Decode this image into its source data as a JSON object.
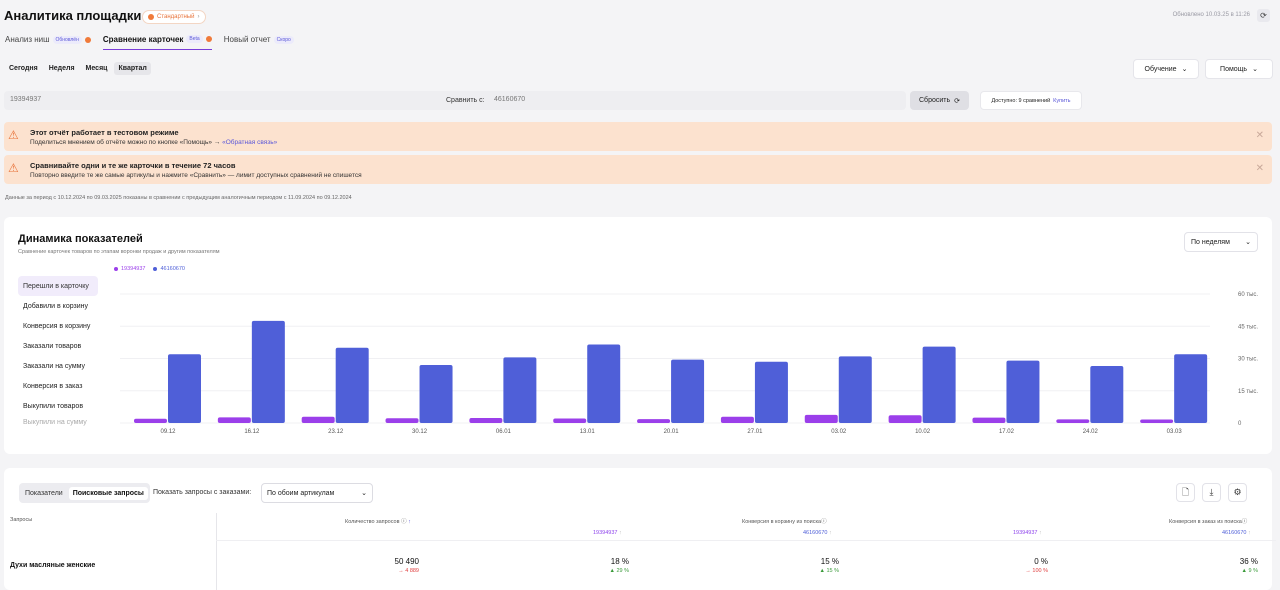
{
  "header": {
    "title": "Аналитика площадки",
    "plan_label": "Стандартный",
    "updated": "Обновлено 10.03.25 в 11:26"
  },
  "tabs": [
    {
      "label": "Анализ ниш",
      "tag": "Обновлён"
    },
    {
      "label": "Сравнение карточек",
      "tag": "Beta"
    },
    {
      "label": "Новый отчет",
      "tag": "Скоро"
    }
  ],
  "periods": [
    "Сегодня",
    "Неделя",
    "Месяц",
    "Квартал"
  ],
  "top_buttons": {
    "learning": "Обучение",
    "help": "Помощь"
  },
  "compare": {
    "article1": "19394937",
    "label": "Сравнить с:",
    "article2": "46160670",
    "reset": "Сбросить",
    "available": "Доступно: 9 сравнений",
    "buy": "Купить"
  },
  "alerts": [
    {
      "title": "Этот отчёт работает в тестовом режиме",
      "text": "Поделиться мнением об отчёте можно по кнопке «Помощь» →",
      "link": "«Обратная связь»"
    },
    {
      "title": "Сравнивайте одни и те же карточки в течение 72 часов",
      "text": "Повторно введите те же самые артикулы и нажмите «Сравнить» — лимит доступных сравнений не спишется"
    }
  ],
  "period_info": "Данные за период с 10.12.2024 по 09.03.2025 показаны в сравнении с предыдущим аналогичным периодом с 11.09.2024 по 09.12.2024",
  "chart_section": {
    "title": "Динамика показателей",
    "subtitle": "Сравнение карточек товаров по этапам воронки продаж и другим показателям",
    "period_select": "По неделям",
    "metrics": [
      "Перешли в карточку",
      "Добавили в корзину",
      "Конверсия в корзину",
      "Заказали товаров",
      "Заказали на сумму",
      "Конверсия в заказ",
      "Выкупили товаров",
      "Выкупили на сумму"
    ]
  },
  "chart_data": {
    "type": "bar",
    "categories": [
      "09.12",
      "16.12",
      "23.12",
      "30.12",
      "06.01",
      "13.01",
      "20.01",
      "27.01",
      "03.02",
      "10.02",
      "17.02",
      "24.02",
      "03.03"
    ],
    "series": [
      {
        "name": "19394937",
        "color": "#9b3fea",
        "values": [
          2000,
          2600,
          2900,
          2200,
          2300,
          2100,
          1800,
          2900,
          3800,
          3600,
          2500,
          1700,
          1600
        ]
      },
      {
        "name": "46160670",
        "color": "#4f5fd8",
        "values": [
          32000,
          47500,
          35000,
          27000,
          30500,
          36500,
          29500,
          28500,
          31000,
          35500,
          29000,
          26500,
          32000
        ]
      }
    ],
    "yticks": [
      "60 тыс.",
      "45 тыс.",
      "30 тыс.",
      "15 тыс.",
      "0"
    ],
    "ylim": [
      0,
      60000
    ]
  },
  "table_section": {
    "tabs": [
      "Показатели",
      "Поисковые запросы"
    ],
    "show_label": "Показать запросы с заказами:",
    "articles_select": "По обоим артикулам",
    "col_query": "Запросы",
    "col_count": "Количество запросов",
    "col_conv_cart": "Конверсия в корзину из поиска",
    "col_conv_order": "Конверсия в заказ из поиска",
    "sub": [
      "19394937",
      "46160670",
      "19394937",
      "46160670"
    ],
    "rows": [
      {
        "name": "Духи масляные женские",
        "count": "50 490",
        "count_delta": "→ 4 889",
        "c1": "18 %",
        "c1_delta": "▲ 29 %",
        "c2": "15 %",
        "c2_delta": "▲ 15 %",
        "c3": "0 %",
        "c3_delta": "→ 100 %",
        "c4": "36 %",
        "c4_delta": "▲ 9 %"
      }
    ]
  }
}
